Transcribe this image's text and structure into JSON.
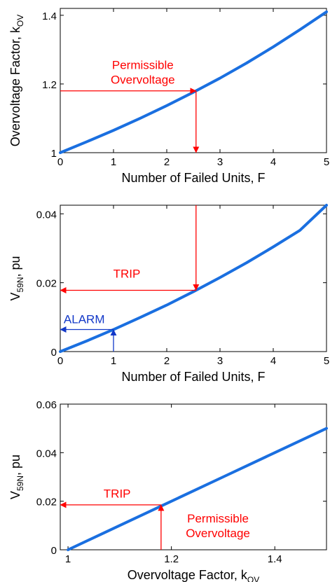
{
  "colors": {
    "curve": "#1a6fe0",
    "trip": "#ff0000",
    "alarm": "#1238c8",
    "axis": "#000000"
  },
  "chart_data": [
    {
      "type": "line",
      "xlabel": "Number of Failed Units, F",
      "ylabel_main": "Overvoltage Factor, k",
      "ylabel_sub": "OV",
      "xlim": [
        0,
        5
      ],
      "ylim": [
        1,
        1.42
      ],
      "xticks": [
        0,
        1,
        2,
        3,
        4,
        5
      ],
      "xtick_labels": [
        "0",
        "1",
        "2",
        "3",
        "4",
        "5"
      ],
      "yticks": [
        1,
        1.2,
        1.4
      ],
      "ytick_labels": [
        "1",
        "1.2",
        "1.4"
      ],
      "series": [
        {
          "x": [
            0,
            0.5,
            1,
            1.5,
            2,
            2.5,
            3,
            3.5,
            4,
            4.5,
            5
          ],
          "y": [
            1.0,
            1.032,
            1.065,
            1.1,
            1.137,
            1.176,
            1.217,
            1.261,
            1.308,
            1.358,
            1.41
          ]
        }
      ],
      "annotations": [
        {
          "lines": [
            "Permissible",
            "Overvoltage"
          ],
          "x": 1.55,
          "y": 1.244,
          "color": "trip"
        }
      ],
      "arrows": [
        {
          "from": [
            0,
            1.18
          ],
          "to": [
            2.55,
            1.18
          ],
          "color": "trip"
        },
        {
          "from": [
            2.55,
            1.18
          ],
          "to": [
            2.55,
            1.0
          ],
          "color": "trip"
        }
      ]
    },
    {
      "type": "line",
      "xlabel": "Number of Failed Units, F",
      "ylabel_main": "V",
      "ylabel_sub": "59N",
      "ylabel_tail": ", pu",
      "xlim": [
        0,
        5
      ],
      "ylim": [
        0,
        0.0425
      ],
      "xticks": [
        0,
        1,
        2,
        3,
        4,
        5
      ],
      "xtick_labels": [
        "0",
        "1",
        "2",
        "3",
        "4",
        "5"
      ],
      "yticks": [
        0,
        0.02,
        0.04
      ],
      "ytick_labels": [
        "0",
        "0.02",
        "0.04"
      ],
      "series": [
        {
          "x": [
            0,
            0.5,
            1,
            1.5,
            2,
            2.5,
            3,
            3.5,
            4,
            4.5,
            5
          ],
          "y": [
            0,
            0.0031,
            0.0064,
            0.0099,
            0.0135,
            0.0174,
            0.0215,
            0.0258,
            0.0304,
            0.0352,
            0.0425
          ]
        }
      ],
      "annotations": [
        {
          "lines": [
            "TRIP"
          ],
          "x": 1.25,
          "y": 0.0215,
          "color": "trip"
        },
        {
          "lines": [
            "ALARM"
          ],
          "x": 0.45,
          "y": 0.0082,
          "color": "alarm"
        }
      ],
      "arrows": [
        {
          "from": [
            2.55,
            0.0425
          ],
          "to": [
            2.55,
            0.0178
          ],
          "color": "trip"
        },
        {
          "from": [
            2.55,
            0.0178
          ],
          "to": [
            0,
            0.0178
          ],
          "color": "trip"
        },
        {
          "from": [
            1.0,
            0
          ],
          "to": [
            1.0,
            0.0064
          ],
          "color": "alarm"
        },
        {
          "from": [
            1.0,
            0.0064
          ],
          "to": [
            0,
            0.0064
          ],
          "color": "alarm"
        }
      ]
    },
    {
      "type": "line",
      "xlabel_main": "Overvoltage Factor, k",
      "xlabel_sub": "OV",
      "ylabel_main": "V",
      "ylabel_sub": "59N",
      "ylabel_tail": ", pu",
      "xlim": [
        0.985,
        1.5
      ],
      "ylim": [
        0,
        0.06
      ],
      "xticks": [
        1,
        1.2,
        1.4
      ],
      "xtick_labels": [
        "1",
        "1.2",
        "1.4"
      ],
      "yticks": [
        0,
        0.02,
        0.04,
        0.06
      ],
      "ytick_labels": [
        "0",
        "0.02",
        "0.04",
        "0.06"
      ],
      "series": [
        {
          "x": [
            1.0,
            1.1,
            1.2,
            1.3,
            1.4,
            1.5
          ],
          "y": [
            0,
            0.01,
            0.02,
            0.03,
            0.04,
            0.05
          ]
        }
      ],
      "annotations": [
        {
          "lines": [
            "TRIP"
          ],
          "x": 1.095,
          "y": 0.0215,
          "color": "trip"
        },
        {
          "lines": [
            "Permissible",
            "Overvoltage"
          ],
          "x": 1.29,
          "y": 0.0113,
          "color": "trip"
        }
      ],
      "arrows": [
        {
          "from": [
            1.18,
            0
          ],
          "to": [
            1.18,
            0.0185
          ],
          "color": "trip"
        },
        {
          "from": [
            1.18,
            0.0185
          ],
          "to": [
            0.985,
            0.0185
          ],
          "color": "trip"
        }
      ]
    }
  ]
}
